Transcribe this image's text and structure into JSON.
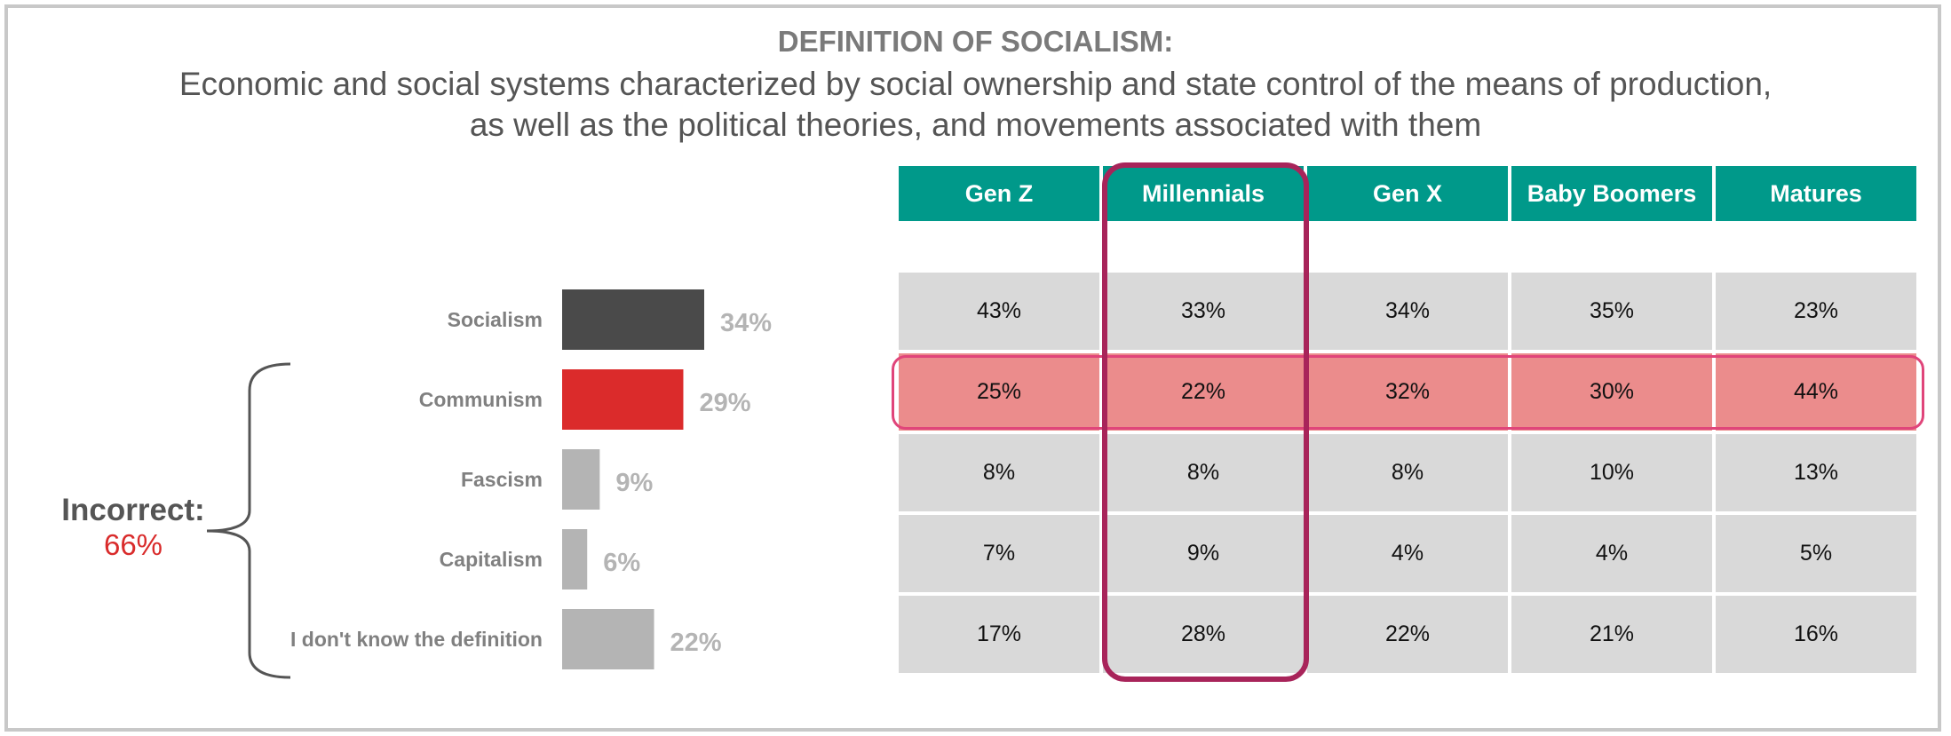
{
  "header": {
    "title": "DEFINITION OF SOCIALISM:",
    "definition": "Economic and social systems characterized by social ownership and state control of the means of production, as well as the political theories, and movements associated with them"
  },
  "incorrect": {
    "label": "Incorrect:",
    "value": "66%"
  },
  "chart_data": {
    "type": "bar",
    "orientation": "horizontal",
    "categories": [
      "Socialism",
      "Communism",
      "Fascism",
      "Capitalism",
      "I don't know the definition"
    ],
    "values": [
      34,
      29,
      9,
      6,
      22
    ],
    "value_labels": [
      "34%",
      "29%",
      "9%",
      "6%",
      "22%"
    ],
    "colors": [
      "#4a4a4a",
      "#db2b2b",
      "#b4b4b4",
      "#b4b4b4",
      "#b4b4b4"
    ],
    "xlim": [
      0,
      34
    ],
    "grid": false
  },
  "table": {
    "columns": [
      "Gen Z",
      "Millennials",
      "Gen X",
      "Baby Boomers",
      "Matures"
    ],
    "rows": [
      [
        "43%",
        "33%",
        "34%",
        "35%",
        "23%"
      ],
      [
        "25%",
        "22%",
        "32%",
        "30%",
        "44%"
      ],
      [
        "8%",
        "8%",
        "8%",
        "10%",
        "13%"
      ],
      [
        "7%",
        "9%",
        "4%",
        "4%",
        "5%"
      ],
      [
        "17%",
        "28%",
        "22%",
        "21%",
        "16%"
      ]
    ],
    "highlight_row_index": 1,
    "highlight_column_index": 1,
    "header_color": "#00998a",
    "highlight_row_color": "#eb8c8c",
    "highlight_border_color": "#e0457a",
    "highlight_column_border_color": "#a8245a"
  }
}
